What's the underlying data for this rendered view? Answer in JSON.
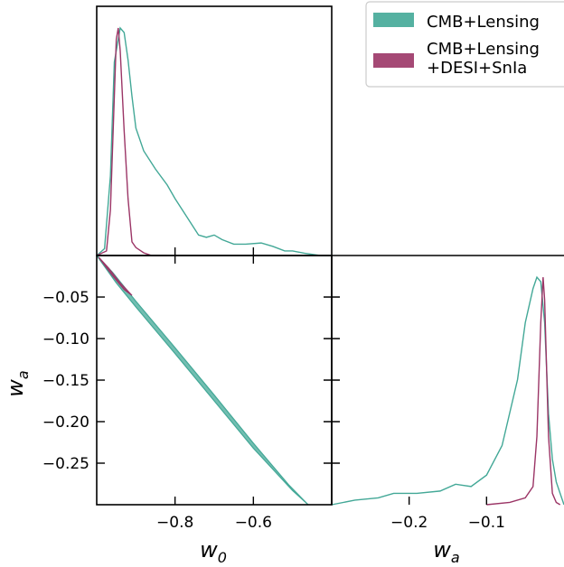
{
  "chart_data": {
    "type": "corner-plot",
    "parameters": {
      "w0": {
        "label": "w",
        "subscript": "0",
        "range": [
          -1.0,
          -0.4
        ],
        "ticks": [
          -0.8,
          -0.6
        ],
        "tick_labels": [
          "−0.8",
          "−0.6"
        ]
      },
      "wa": {
        "label": "w",
        "subscript": "a",
        "range": [
          -0.3,
          0.0
        ],
        "ticks": [
          -0.05,
          -0.1,
          -0.15,
          -0.2,
          -0.25
        ],
        "tick_labels": [
          "−0.05",
          "−0.10",
          "−0.15",
          "−0.20",
          "−0.25"
        ],
        "diag_ticks": [
          -0.2,
          -0.1
        ],
        "diag_tick_labels": [
          "−0.2",
          "−0.1"
        ]
      }
    },
    "legend": {
      "placement": "top-right",
      "entries": [
        {
          "lines": [
            "CMB+Lensing"
          ],
          "color": "#43a897"
        },
        {
          "lines": [
            "CMB+Lensing",
            "+DESI+SnIa"
          ],
          "color": "#9b3566"
        }
      ]
    },
    "series": [
      {
        "id": "cmb_lensing",
        "color": "#43a897",
        "w0_pdf": {
          "x": [
            -1.0,
            -0.98,
            -0.965,
            -0.955,
            -0.94,
            -0.93,
            -0.92,
            -0.91,
            -0.9,
            -0.88,
            -0.85,
            -0.82,
            -0.8,
            -0.77,
            -0.74,
            -0.72,
            -0.7,
            -0.68,
            -0.65,
            -0.62,
            -0.58,
            -0.55,
            -0.52,
            -0.5,
            -0.47,
            -0.45,
            -0.43,
            -0.4
          ],
          "y": [
            0.0,
            0.03,
            0.35,
            0.85,
            1.0,
            0.98,
            0.86,
            0.7,
            0.56,
            0.46,
            0.38,
            0.31,
            0.25,
            0.17,
            0.09,
            0.08,
            0.09,
            0.07,
            0.05,
            0.05,
            0.055,
            0.04,
            0.02,
            0.02,
            0.01,
            0.005,
            0.0,
            0.0
          ]
        },
        "wa_pdf": {
          "x": [
            -0.3,
            -0.27,
            -0.24,
            -0.22,
            -0.19,
            -0.16,
            -0.14,
            -0.12,
            -0.1,
            -0.08,
            -0.06,
            -0.05,
            -0.04,
            -0.035,
            -0.03,
            -0.025,
            -0.02,
            -0.015,
            -0.01,
            0.0
          ],
          "y": [
            0.0,
            0.02,
            0.03,
            0.05,
            0.05,
            0.06,
            0.09,
            0.08,
            0.13,
            0.26,
            0.55,
            0.8,
            0.95,
            1.0,
            0.98,
            0.8,
            0.4,
            0.2,
            0.1,
            0.0
          ]
        },
        "contour": [
          [
            -1.0,
            -0.0
          ],
          [
            -0.95,
            -0.033
          ],
          [
            -0.9,
            -0.062
          ],
          [
            -0.8,
            -0.118
          ],
          [
            -0.7,
            -0.175
          ],
          [
            -0.6,
            -0.232
          ],
          [
            -0.5,
            -0.283
          ],
          [
            -0.46,
            -0.3
          ],
          [
            -0.51,
            -0.276
          ],
          [
            -0.6,
            -0.226
          ],
          [
            -0.7,
            -0.168
          ],
          [
            -0.8,
            -0.111
          ],
          [
            -0.9,
            -0.055
          ],
          [
            -0.96,
            -0.02
          ],
          [
            -1.0,
            0.0
          ]
        ]
      },
      {
        "id": "cmb_lensing_desi_snia",
        "color": "#9b3566",
        "w0_pdf": {
          "x": [
            -1.0,
            -0.975,
            -0.965,
            -0.955,
            -0.95,
            -0.945,
            -0.94,
            -0.93,
            -0.92,
            -0.91,
            -0.9,
            -0.88,
            -0.86,
            -0.82
          ],
          "y": [
            0.0,
            0.02,
            0.2,
            0.7,
            0.95,
            1.0,
            0.9,
            0.55,
            0.25,
            0.06,
            0.035,
            0.012,
            0.0,
            0.0
          ]
        },
        "wa_pdf": {
          "x": [
            -0.1,
            -0.07,
            -0.05,
            -0.04,
            -0.035,
            -0.03,
            -0.027,
            -0.025,
            -0.02,
            -0.015,
            -0.01,
            -0.005
          ],
          "y": [
            0.0,
            0.01,
            0.03,
            0.08,
            0.3,
            0.8,
            1.0,
            0.9,
            0.3,
            0.05,
            0.01,
            0.0
          ]
        },
        "contour": [
          [
            -0.995,
            -0.002
          ],
          [
            -0.97,
            -0.015
          ],
          [
            -0.94,
            -0.033
          ],
          [
            -0.91,
            -0.048
          ],
          [
            -0.93,
            -0.041
          ],
          [
            -0.96,
            -0.024
          ],
          [
            -0.995,
            -0.002
          ]
        ]
      }
    ]
  }
}
